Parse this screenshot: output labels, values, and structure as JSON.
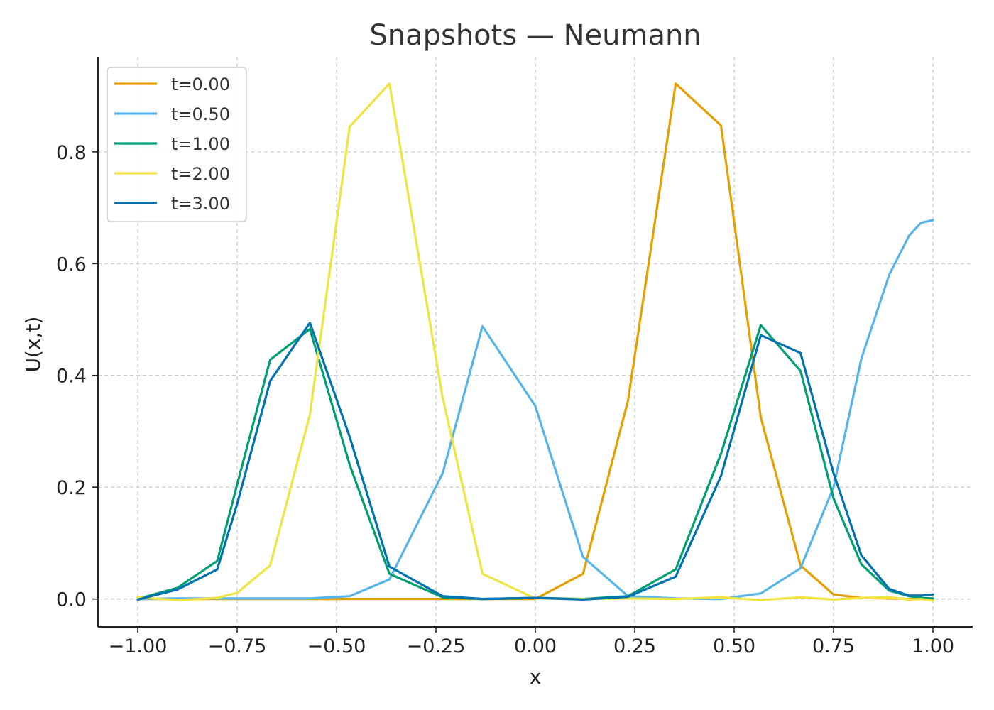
{
  "chart_data": {
    "type": "line",
    "title": "Snapshots — Neumann",
    "xlabel": "x",
    "ylabel": "U(x,t)",
    "xlim": [
      -1.1,
      1.1
    ],
    "ylim": [
      -0.05,
      0.97
    ],
    "grid": true,
    "legend_position": "top-left",
    "x_ticks": [
      -1.0,
      -0.75,
      -0.5,
      -0.25,
      0.0,
      0.25,
      0.5,
      0.75,
      1.0
    ],
    "x_tick_labels": [
      "−1.00",
      "−0.75",
      "−0.50",
      "−0.25",
      "0.00",
      "0.25",
      "0.50",
      "0.75",
      "1.00"
    ],
    "y_ticks": [
      0.0,
      0.2,
      0.4,
      0.6,
      0.8
    ],
    "y_tick_labels": [
      "0.0",
      "0.2",
      "0.4",
      "0.6",
      "0.8"
    ],
    "x": [
      -1.0,
      -0.9,
      -0.8,
      -0.75,
      -0.667,
      -0.567,
      -0.467,
      -0.367,
      -0.233,
      -0.133,
      0.0,
      0.12,
      0.233,
      0.353,
      0.467,
      0.567,
      0.667,
      0.75,
      0.82,
      0.89,
      0.94,
      0.97,
      1.0
    ],
    "series": [
      {
        "name": "t=0.00",
        "color": "#E69F00",
        "values": [
          0.0,
          0.0,
          0.0,
          0.0,
          0.0,
          0.0,
          0.0,
          0.0,
          0.0,
          0.0,
          0.0,
          0.045,
          0.355,
          0.922,
          0.847,
          0.325,
          0.06,
          0.008,
          0.002,
          0.001,
          0.0,
          0.0,
          0.0
        ]
      },
      {
        "name": "t=0.50",
        "color": "#56B4E9",
        "values": [
          0.0,
          0.001,
          0.001,
          0.001,
          0.001,
          0.001,
          0.005,
          0.035,
          0.225,
          0.488,
          0.345,
          0.075,
          0.005,
          0.001,
          0.0,
          0.01,
          0.055,
          0.2,
          0.43,
          0.58,
          0.65,
          0.673,
          0.678
        ]
      },
      {
        "name": "t=1.00",
        "color": "#009E73",
        "values": [
          0.0,
          0.02,
          0.068,
          0.205,
          0.428,
          0.483,
          0.24,
          0.045,
          0.003,
          0.0,
          0.002,
          0.0,
          0.005,
          0.053,
          0.26,
          0.49,
          0.408,
          0.18,
          0.062,
          0.015,
          0.005,
          0.002,
          0.001
        ]
      },
      {
        "name": "t=2.00",
        "color": "#F0E442",
        "values": [
          0.003,
          -0.002,
          0.002,
          0.011,
          0.06,
          0.33,
          0.845,
          0.922,
          0.36,
          0.045,
          0.001,
          0.0,
          0.001,
          0.0,
          0.003,
          -0.002,
          0.003,
          -0.001,
          0.002,
          0.003,
          -0.001,
          0.0,
          -0.003
        ]
      },
      {
        "name": "t=3.00",
        "color": "#0072B2",
        "values": [
          -0.001,
          0.017,
          0.053,
          0.17,
          0.39,
          0.494,
          0.29,
          0.058,
          0.005,
          0.0,
          0.002,
          -0.001,
          0.004,
          0.04,
          0.22,
          0.472,
          0.44,
          0.225,
          0.078,
          0.018,
          0.006,
          0.006,
          0.008
        ]
      }
    ]
  }
}
